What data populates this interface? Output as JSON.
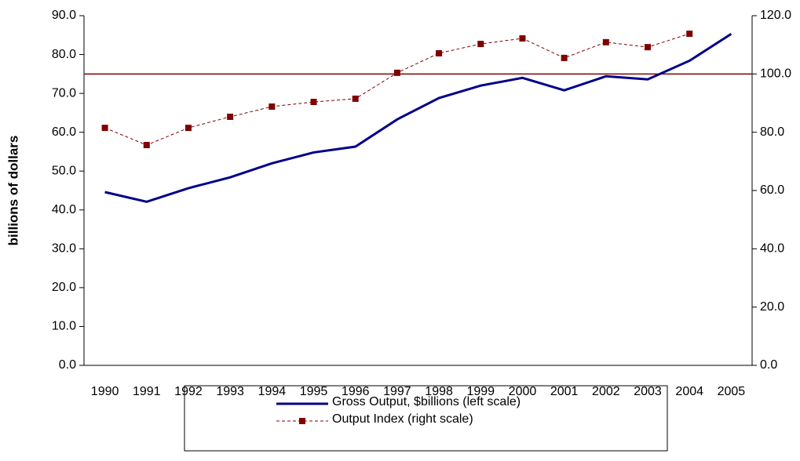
{
  "chart_data": {
    "type": "line",
    "y_label": "billions of dollars",
    "categories": [
      "1990",
      "1991",
      "1992",
      "1993",
      "1994",
      "1995",
      "1996",
      "1997",
      "1998",
      "1999",
      "2000",
      "2001",
      "2002",
      "2003",
      "2004",
      "2005"
    ],
    "series": [
      {
        "name": "Gross Output, $billions (left scale)",
        "color": "#00008b",
        "axis": "y",
        "values": [
          44.6,
          42.1,
          45.6,
          48.4,
          52.0,
          54.8,
          56.3,
          63.3,
          68.8,
          72.0,
          74.0,
          70.8,
          74.4,
          73.6,
          78.4,
          85.3
        ]
      },
      {
        "name": "Output Index (right scale)",
        "color": "#800000",
        "axis": "y2",
        "dashed": true,
        "markers": true,
        "values": [
          81.5,
          75.6,
          81.5,
          85.3,
          88.8,
          90.4,
          91.5,
          100.4,
          107.1,
          110.3,
          112.2,
          105.5,
          110.9,
          109.2,
          113.8,
          null
        ]
      }
    ],
    "reference_line": {
      "value": 100,
      "axis": "y2",
      "color": "#800000"
    },
    "ylim": [
      0,
      90
    ],
    "yticks": [
      {
        "value": 0,
        "label": "0.0"
      },
      {
        "value": 10,
        "label": "10.0"
      },
      {
        "value": 20,
        "label": "20.0"
      },
      {
        "value": 30,
        "label": "30.0"
      },
      {
        "value": 40,
        "label": "40.0"
      },
      {
        "value": 50,
        "label": "50.0"
      },
      {
        "value": 60,
        "label": "60.0"
      },
      {
        "value": 70,
        "label": "70.0"
      },
      {
        "value": 80,
        "label": "80.0"
      },
      {
        "value": 90,
        "label": "90.0"
      }
    ],
    "y2lim": [
      0,
      120
    ],
    "y2ticks": [
      {
        "value": 0,
        "label": "0.0"
      },
      {
        "value": 20,
        "label": "20.0"
      },
      {
        "value": 40,
        "label": "40.0"
      },
      {
        "value": 60,
        "label": "60.0"
      },
      {
        "value": 80,
        "label": "80.0"
      },
      {
        "value": 100,
        "label": "100.0"
      },
      {
        "value": 120,
        "label": "120.0"
      }
    ],
    "legend": "bottom"
  }
}
